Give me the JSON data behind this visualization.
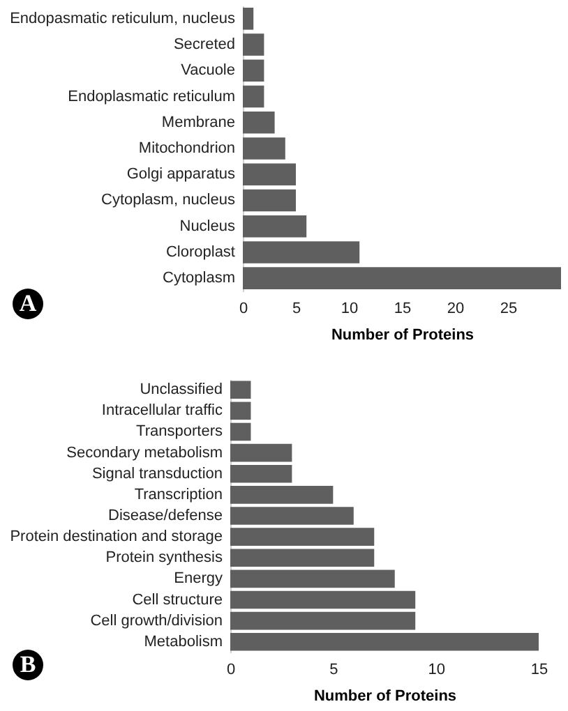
{
  "chart_data": [
    {
      "type": "bar",
      "orientation": "horizontal",
      "categories": [
        "Endopasmatic reticulum, nucleus",
        "Secreted",
        "Vacuole",
        "Endoplasmatic reticulum",
        "Membrane",
        "Mitochondrion",
        "Golgi apparatus",
        "Cytoplasm, nucleus",
        "Nucleus",
        "Cloroplast",
        "Cytoplasm"
      ],
      "values": [
        1,
        2,
        2,
        2,
        3,
        4,
        5,
        5,
        6,
        11,
        30
      ],
      "color": "#5f5f5f",
      "xlim": [
        0,
        30
      ],
      "xticks": [
        0,
        5,
        10,
        15,
        20,
        25
      ],
      "xlabel": "Number of Proteins",
      "annotations": [
        "A"
      ]
    },
    {
      "type": "bar",
      "orientation": "horizontal",
      "categories": [
        "Unclassified",
        "Intracellular traffic",
        "Transporters",
        "Secondary metabolism",
        "Signal transduction",
        "Transcription",
        "Disease/defense",
        "Protein destination and storage",
        "Protein synthesis",
        "Energy",
        "Cell structure",
        "Cell growth/division",
        "Metabolism"
      ],
      "values": [
        1,
        1,
        1,
        3,
        3,
        5,
        6,
        7,
        7,
        8,
        9,
        9,
        15
      ],
      "color": "#5f5f5f",
      "xlim": [
        0,
        15
      ],
      "xticks": [
        0,
        5,
        10,
        15
      ],
      "xlabel": "Number of Proteins",
      "annotations": [
        "B"
      ]
    }
  ]
}
